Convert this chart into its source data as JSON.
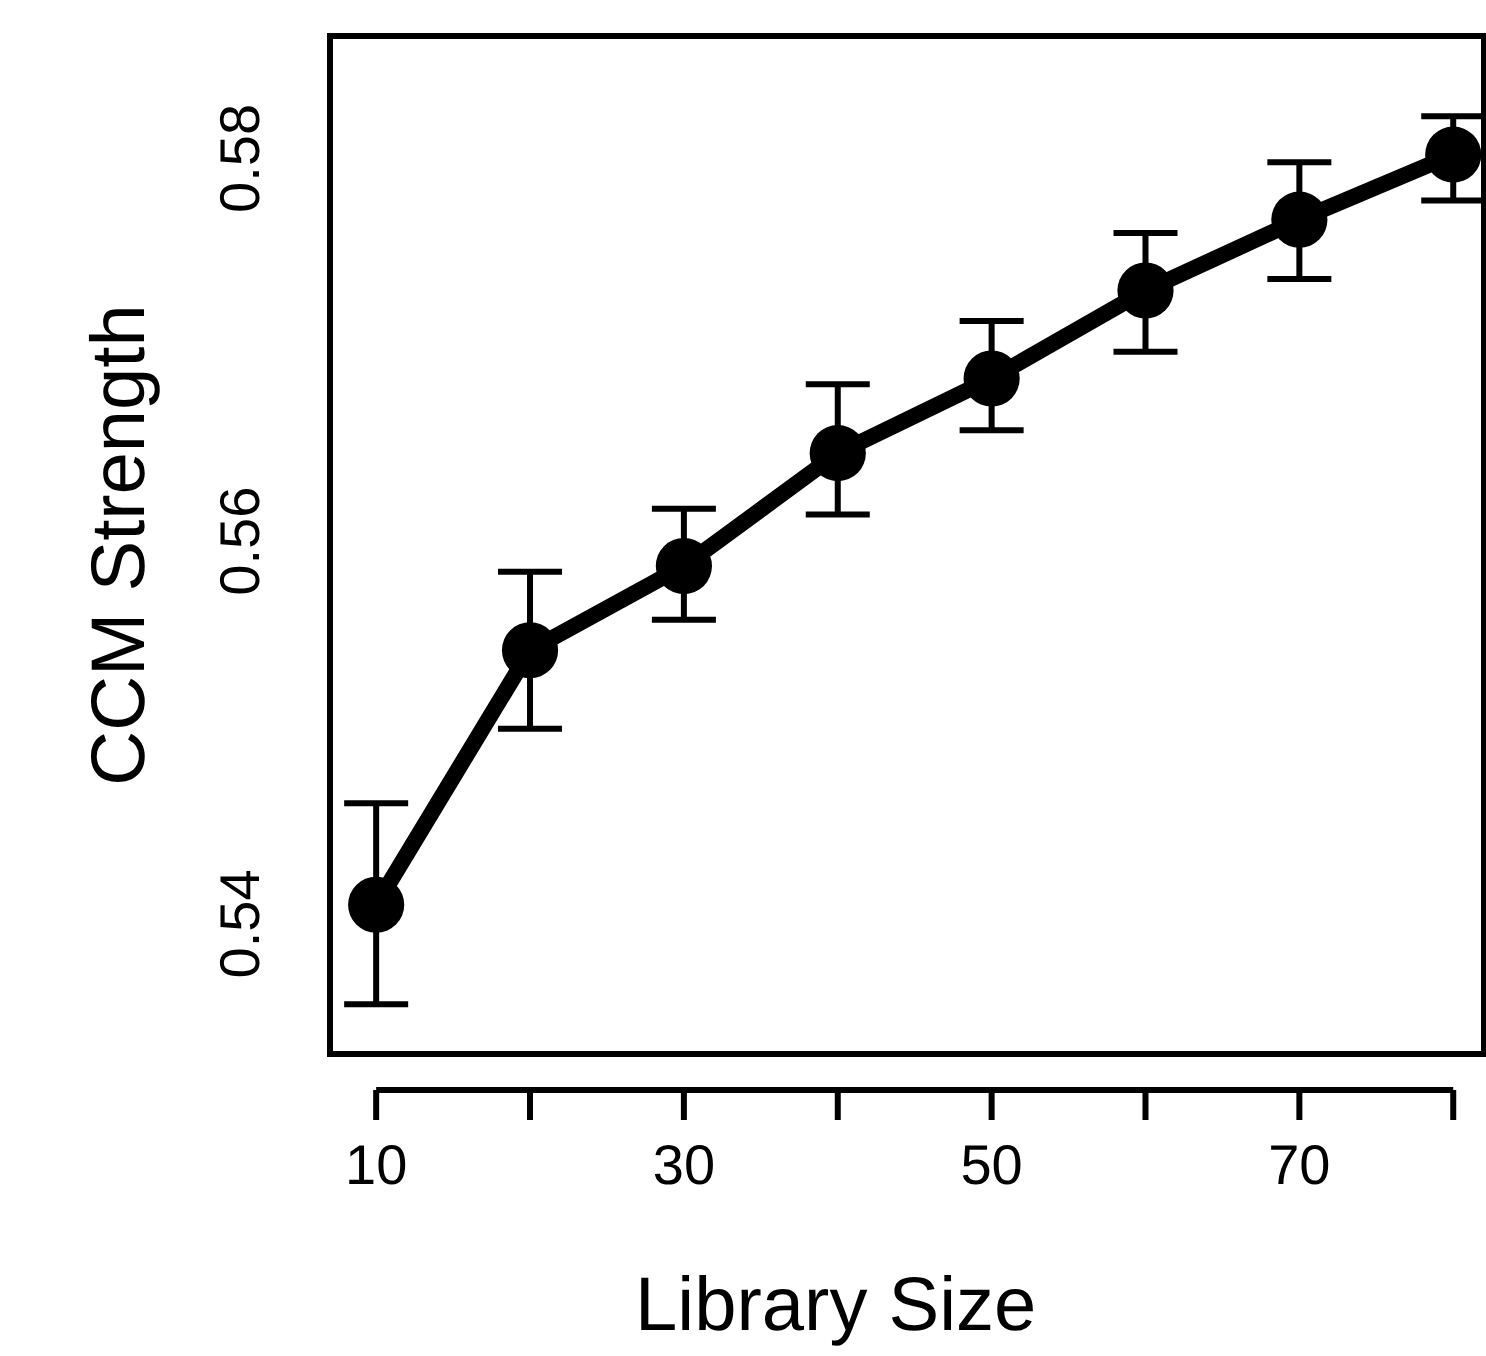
{
  "chart_data": {
    "type": "line",
    "xlabel": "Library Size",
    "ylabel": "CCM Strength",
    "x": [
      10,
      20,
      30,
      40,
      50,
      60,
      70,
      80
    ],
    "values": [
      0.541,
      0.5543,
      0.5587,
      0.5646,
      0.5685,
      0.5731,
      0.5768,
      0.5802
    ],
    "errors": [
      [
        0.5358,
        0.5463
      ],
      [
        0.5502,
        0.5584
      ],
      [
        0.5559,
        0.5617
      ],
      [
        0.5614,
        0.5682
      ],
      [
        0.5658,
        0.5715
      ],
      [
        0.5699,
        0.5761
      ],
      [
        0.5737,
        0.5798
      ],
      [
        0.5778,
        0.5822
      ]
    ],
    "color": "#000000",
    "marker": "circle",
    "line_style": "solid",
    "grid": false,
    "xlim": [
      7,
      82
    ],
    "ylim": [
      0.5332,
      0.5864
    ],
    "xticks": [
      10,
      30,
      50,
      70
    ],
    "yticks": [
      0.54,
      0.56,
      0.58
    ]
  }
}
